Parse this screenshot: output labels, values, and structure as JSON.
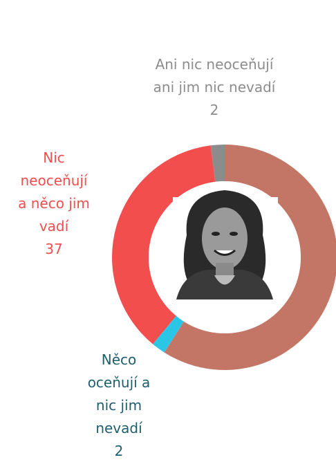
{
  "chart_data": {
    "type": "donut",
    "categories": [
      null,
      "Něco\noceňují a\nnic jim\nnevadí",
      "Nic\nneoceňují\na něco jim\nvadí",
      "Ani nic neoceňují\nani jim nic nevadí"
    ],
    "values": [
      59,
      2,
      37,
      2
    ],
    "colors": [
      "#c47666",
      "#2bc6e6",
      "#f24e4e",
      "#8c8c8c"
    ],
    "label_colors": [
      null,
      "#1f5e6b",
      "#f24e4e",
      "#8c8c8c"
    ]
  }
}
